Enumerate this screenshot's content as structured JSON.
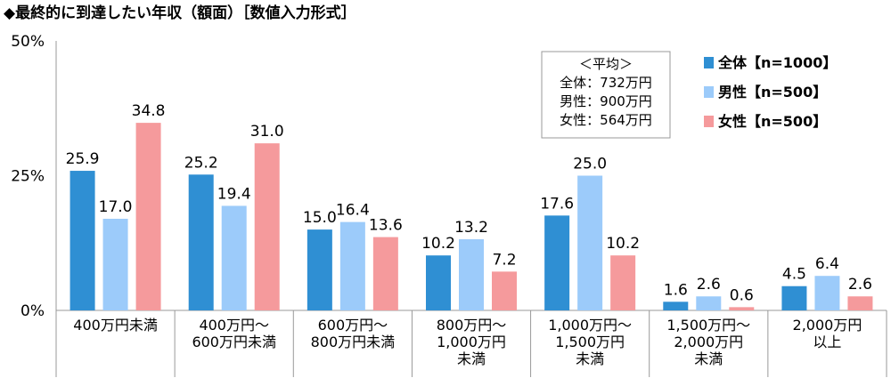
{
  "chart_data": {
    "type": "bar",
    "title": "◆最終的に到達したい年収（額面）［数値入力形式］",
    "xlabel": "",
    "ylabel": "",
    "ylim": [
      0,
      50
    ],
    "yticks": [
      "0%",
      "25%",
      "50%"
    ],
    "grid": false,
    "legend_position": "top-right",
    "categories": [
      [
        "400万円未満"
      ],
      [
        "400万円～",
        "600万円未満"
      ],
      [
        "600万円～",
        "800万円未満"
      ],
      [
        "800万円～",
        "1,000万円",
        "未満"
      ],
      [
        "1,000万円～",
        "1,500万円",
        "未満"
      ],
      [
        "1,500万円～",
        "2,000万円",
        "未満"
      ],
      [
        "2,000万円",
        "以上"
      ]
    ],
    "series": [
      {
        "name": "全体【n=1000】",
        "color": "#2f8fd3",
        "values": [
          25.9,
          25.2,
          15.0,
          10.2,
          17.6,
          1.6,
          4.5
        ]
      },
      {
        "name": "男性【n=500】",
        "color": "#9ccbfa",
        "values": [
          17.0,
          19.4,
          16.4,
          13.2,
          25.0,
          2.6,
          6.4
        ]
      },
      {
        "name": "女性【n=500】",
        "color": "#f59a9c",
        "values": [
          34.8,
          31.0,
          13.6,
          7.2,
          10.2,
          0.6,
          2.6
        ]
      }
    ],
    "annotation": {
      "lines": [
        "＜平均＞",
        "全体：732万円",
        "男性：900万円",
        "女性：564万円"
      ]
    }
  }
}
